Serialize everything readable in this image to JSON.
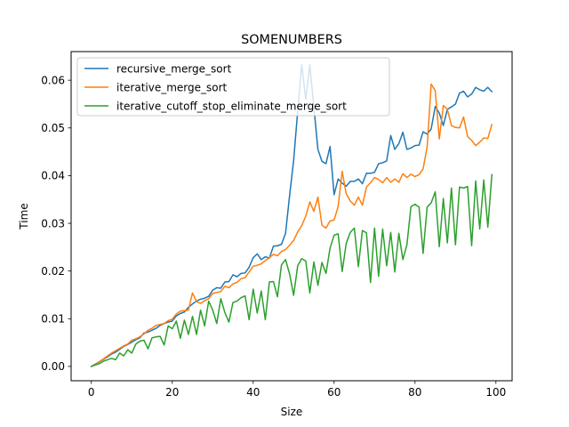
{
  "chart_data": {
    "type": "line",
    "title": "SOMENUMBERS",
    "xlabel": "Size",
    "ylabel": "Time",
    "xlim": [
      -5,
      104
    ],
    "ylim": [
      -0.003,
      0.066
    ],
    "xticks": [
      0,
      20,
      40,
      60,
      80,
      100
    ],
    "xtick_labels": [
      "0",
      "20",
      "40",
      "60",
      "80",
      "100"
    ],
    "yticks": [
      0,
      0.01,
      0.02,
      0.03,
      0.04,
      0.05,
      0.06
    ],
    "ytick_labels": [
      "0.00",
      "0.01",
      "0.02",
      "0.03",
      "0.04",
      "0.05",
      "0.06"
    ],
    "grid": false,
    "legend_position": "upper-left",
    "x": [
      0,
      1,
      2,
      3,
      4,
      5,
      6,
      7,
      8,
      9,
      10,
      11,
      12,
      13,
      14,
      15,
      16,
      17,
      18,
      19,
      20,
      21,
      22,
      23,
      24,
      25,
      26,
      27,
      28,
      29,
      30,
      31,
      32,
      33,
      34,
      35,
      36,
      37,
      38,
      39,
      40,
      41,
      42,
      43,
      44,
      45,
      46,
      47,
      48,
      49,
      50,
      51,
      52,
      53,
      54,
      55,
      56,
      57,
      58,
      59,
      60,
      61,
      62,
      63,
      64,
      65,
      66,
      67,
      68,
      69,
      70,
      71,
      72,
      73,
      74,
      75,
      76,
      77,
      78,
      79,
      80,
      81,
      82,
      83,
      84,
      85,
      86,
      87,
      88,
      89,
      90,
      91,
      92,
      93,
      94,
      95,
      96,
      97,
      98,
      99
    ],
    "series": [
      {
        "name": "recursive_merge_sort",
        "color": "#1f77b4",
        "values": [
          0,
          0.0005,
          0.001,
          0.0015,
          0.002,
          0.0026,
          0.003,
          0.0036,
          0.0042,
          0.0046,
          0.0051,
          0.0056,
          0.006,
          0.007,
          0.0072,
          0.0076,
          0.008,
          0.0086,
          0.009,
          0.0093,
          0.0095,
          0.0106,
          0.0111,
          0.0114,
          0.0124,
          0.0131,
          0.0137,
          0.0141,
          0.0143,
          0.0147,
          0.016,
          0.0165,
          0.0164,
          0.0177,
          0.0178,
          0.0192,
          0.0188,
          0.0195,
          0.0196,
          0.0208,
          0.0228,
          0.0236,
          0.0224,
          0.023,
          0.0227,
          0.0252,
          0.0253,
          0.0256,
          0.0279,
          0.0358,
          0.0432,
          0.0535,
          0.0632,
          0.056,
          0.0632,
          0.0544,
          0.0455,
          0.043,
          0.0425,
          0.0461,
          0.036,
          0.0393,
          0.0384,
          0.0378,
          0.0388,
          0.0388,
          0.0393,
          0.0383,
          0.0405,
          0.0405,
          0.0407,
          0.0425,
          0.0427,
          0.0431,
          0.0484,
          0.0455,
          0.0467,
          0.0491,
          0.0455,
          0.0458,
          0.0463,
          0.0464,
          0.0492,
          0.0487,
          0.0498,
          0.0545,
          0.0531,
          0.0505,
          0.0539,
          0.0544,
          0.055,
          0.0573,
          0.0577,
          0.0565,
          0.0571,
          0.0585,
          0.058,
          0.0577,
          0.0585,
          0.0576
        ]
      },
      {
        "name": "iterative_merge_sort",
        "color": "#ff7f0e",
        "values": [
          0,
          0.0004,
          0.001,
          0.0016,
          0.0022,
          0.0028,
          0.0033,
          0.0038,
          0.0043,
          0.0047,
          0.0055,
          0.0058,
          0.0062,
          0.0068,
          0.0076,
          0.008,
          0.0086,
          0.0088,
          0.009,
          0.0096,
          0.0099,
          0.011,
          0.0116,
          0.0117,
          0.0118,
          0.0154,
          0.0136,
          0.0132,
          0.0138,
          0.0142,
          0.0153,
          0.0155,
          0.0157,
          0.0168,
          0.0165,
          0.0173,
          0.0176,
          0.0184,
          0.0186,
          0.0198,
          0.021,
          0.0212,
          0.0215,
          0.0222,
          0.0228,
          0.0235,
          0.0232,
          0.0241,
          0.0245,
          0.0254,
          0.0264,
          0.0282,
          0.0295,
          0.0315,
          0.0345,
          0.0325,
          0.0355,
          0.0296,
          0.029,
          0.0305,
          0.0307,
          0.0335,
          0.0409,
          0.0362,
          0.0347,
          0.0338,
          0.0355,
          0.0338,
          0.0376,
          0.0385,
          0.0396,
          0.0392,
          0.0385,
          0.0396,
          0.0386,
          0.0393,
          0.0386,
          0.0404,
          0.0396,
          0.0403,
          0.0398,
          0.0402,
          0.0414,
          0.046,
          0.0592,
          0.0578,
          0.0477,
          0.0547,
          0.0539,
          0.0505,
          0.0501,
          0.05,
          0.0523,
          0.0482,
          0.0474,
          0.0463,
          0.047,
          0.0479,
          0.0478,
          0.0507
        ]
      },
      {
        "name": "iterative_cutoff_stop_eliminate_merge_sort",
        "color": "#2ca02c",
        "values": [
          0,
          0.0003,
          0.0006,
          0.0011,
          0.0014,
          0.0017,
          0.0014,
          0.0028,
          0.0022,
          0.0035,
          0.0028,
          0.0047,
          0.0053,
          0.0055,
          0.0037,
          0.006,
          0.0062,
          0.0063,
          0.0045,
          0.0085,
          0.0079,
          0.0095,
          0.0059,
          0.0097,
          0.0067,
          0.0105,
          0.0067,
          0.0118,
          0.0085,
          0.0137,
          0.0118,
          0.009,
          0.0142,
          0.0113,
          0.0093,
          0.0134,
          0.0137,
          0.0144,
          0.0148,
          0.0098,
          0.0162,
          0.0112,
          0.0158,
          0.0098,
          0.0177,
          0.0178,
          0.0146,
          0.0213,
          0.0224,
          0.0194,
          0.0149,
          0.0211,
          0.0226,
          0.0221,
          0.0154,
          0.0219,
          0.017,
          0.0218,
          0.0195,
          0.0248,
          0.0275,
          0.0278,
          0.0199,
          0.0258,
          0.0281,
          0.029,
          0.0209,
          0.0285,
          0.028,
          0.0176,
          0.029,
          0.0189,
          0.0288,
          0.0211,
          0.0281,
          0.0198,
          0.0279,
          0.0224,
          0.0255,
          0.0335,
          0.034,
          0.0334,
          0.0237,
          0.0334,
          0.0343,
          0.0366,
          0.0251,
          0.0352,
          0.0259,
          0.0374,
          0.0255,
          0.0376,
          0.0374,
          0.0377,
          0.0253,
          0.0389,
          0.0288,
          0.0391,
          0.0292,
          0.0402
        ]
      }
    ]
  }
}
